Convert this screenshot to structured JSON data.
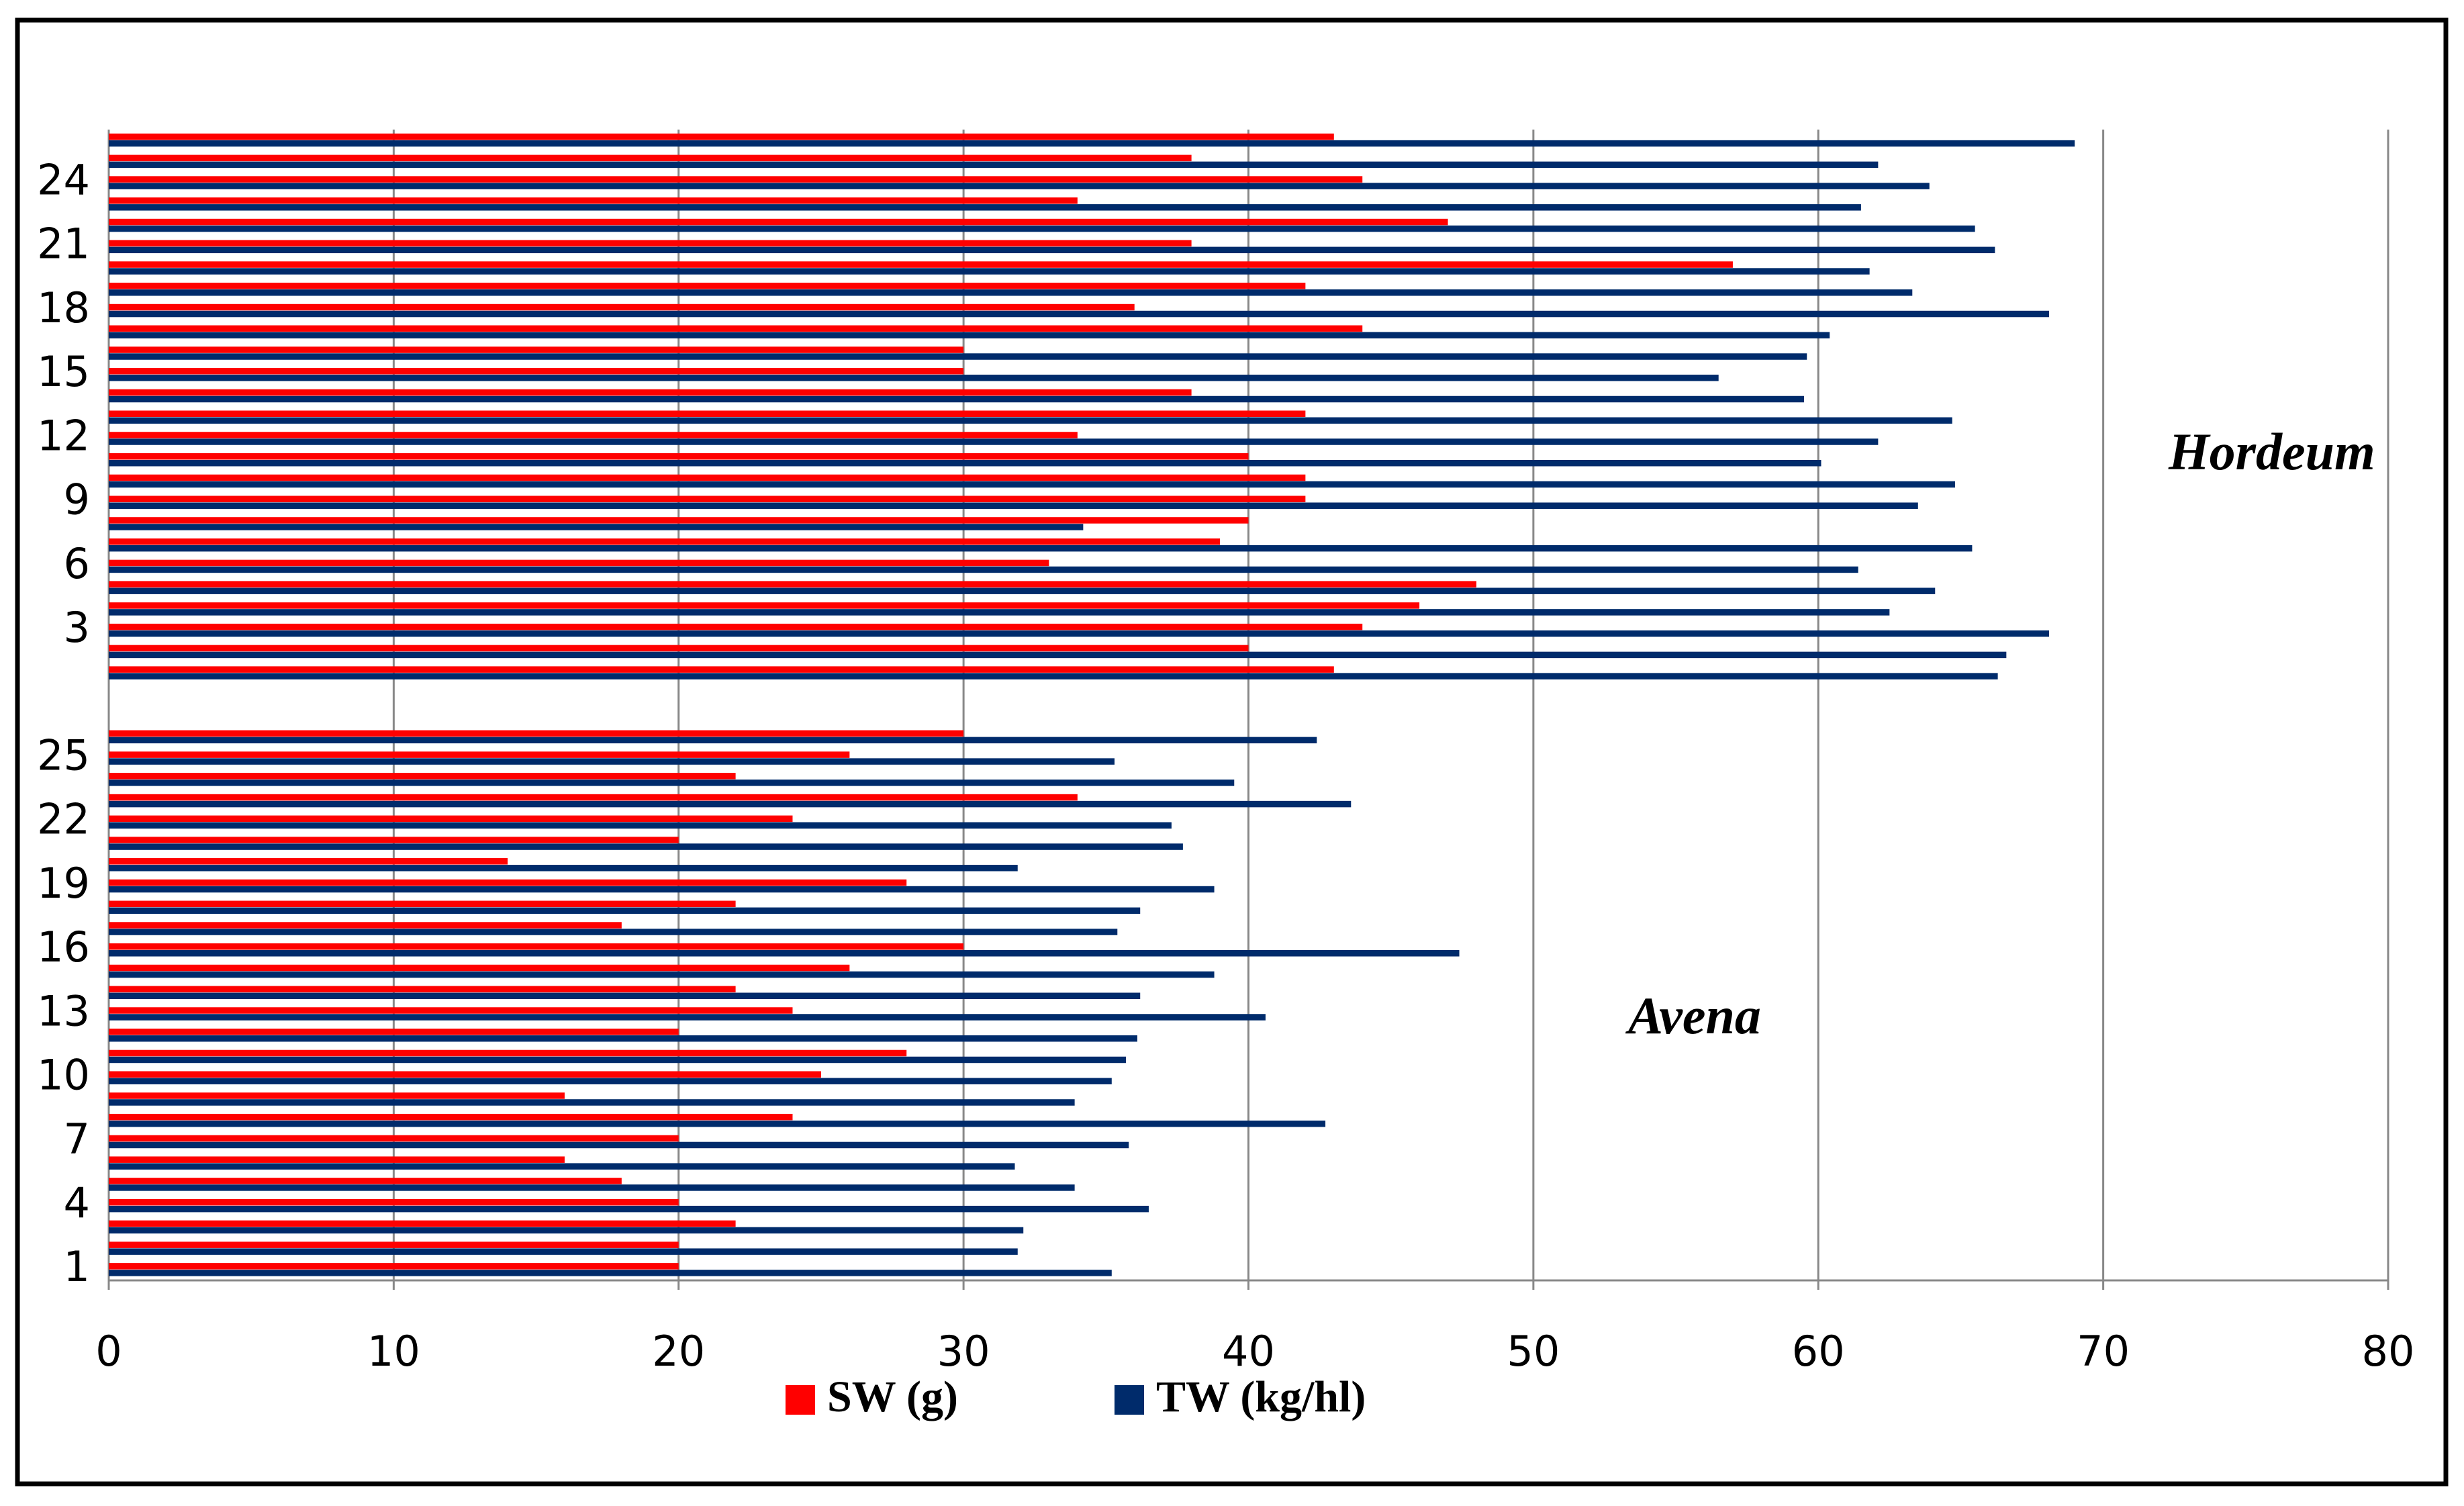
{
  "chart_data": {
    "type": "hbar",
    "categories": [
      "1",
      null,
      null,
      "4",
      null,
      null,
      "7",
      null,
      null,
      "10",
      null,
      null,
      "13",
      null,
      null,
      "16",
      null,
      null,
      "19",
      null,
      null,
      "22",
      null,
      null,
      "25",
      null,
      null,
      null,
      null,
      null,
      "3",
      null,
      null,
      "6",
      null,
      null,
      "9",
      null,
      null,
      "12",
      null,
      null,
      "15",
      null,
      null,
      "18",
      null,
      null,
      "21",
      null,
      null,
      "24",
      null,
      null
    ],
    "series": [
      {
        "name": "SW (g)",
        "color": "#ff0000",
        "values": [
          20,
          20,
          22,
          20,
          18,
          16,
          20,
          24,
          16,
          25,
          28,
          20,
          24,
          22,
          26,
          30,
          18,
          22,
          28,
          14,
          20,
          24,
          34,
          22,
          26,
          30,
          null,
          null,
          43,
          40,
          44,
          46,
          48,
          33,
          39,
          40,
          42,
          42,
          40,
          34,
          42,
          38,
          30,
          30,
          44,
          36,
          42,
          57,
          38,
          47,
          34,
          44,
          38,
          43
        ]
      },
      {
        "name": "TW (kg/hl)",
        "color": "#002b6b",
        "values": [
          35.2,
          31.9,
          32.1,
          36.5,
          33.9,
          31.8,
          35.8,
          42.7,
          33.9,
          35.2,
          35.7,
          36.1,
          40.6,
          36.2,
          38.8,
          47.4,
          35.4,
          36.2,
          38.8,
          31.9,
          37.7,
          37.3,
          43.6,
          39.5,
          35.3,
          42.4,
          null,
          null,
          66.3,
          66.6,
          68.1,
          62.5,
          64.1,
          61.4,
          65.4,
          34.2,
          63.5,
          64.8,
          60.1,
          62.1,
          64.7,
          59.5,
          56.5,
          59.6,
          60.4,
          68.1,
          63.3,
          61.8,
          66.2,
          65.5,
          61.5,
          63.9,
          62.1,
          69
        ]
      }
    ],
    "xlim": [
      0,
      80
    ],
    "xticks": [
      0,
      10,
      20,
      30,
      40,
      50,
      60,
      70,
      80
    ],
    "grid": true,
    "annotations": [
      "Hordeum",
      "Avena"
    ]
  }
}
